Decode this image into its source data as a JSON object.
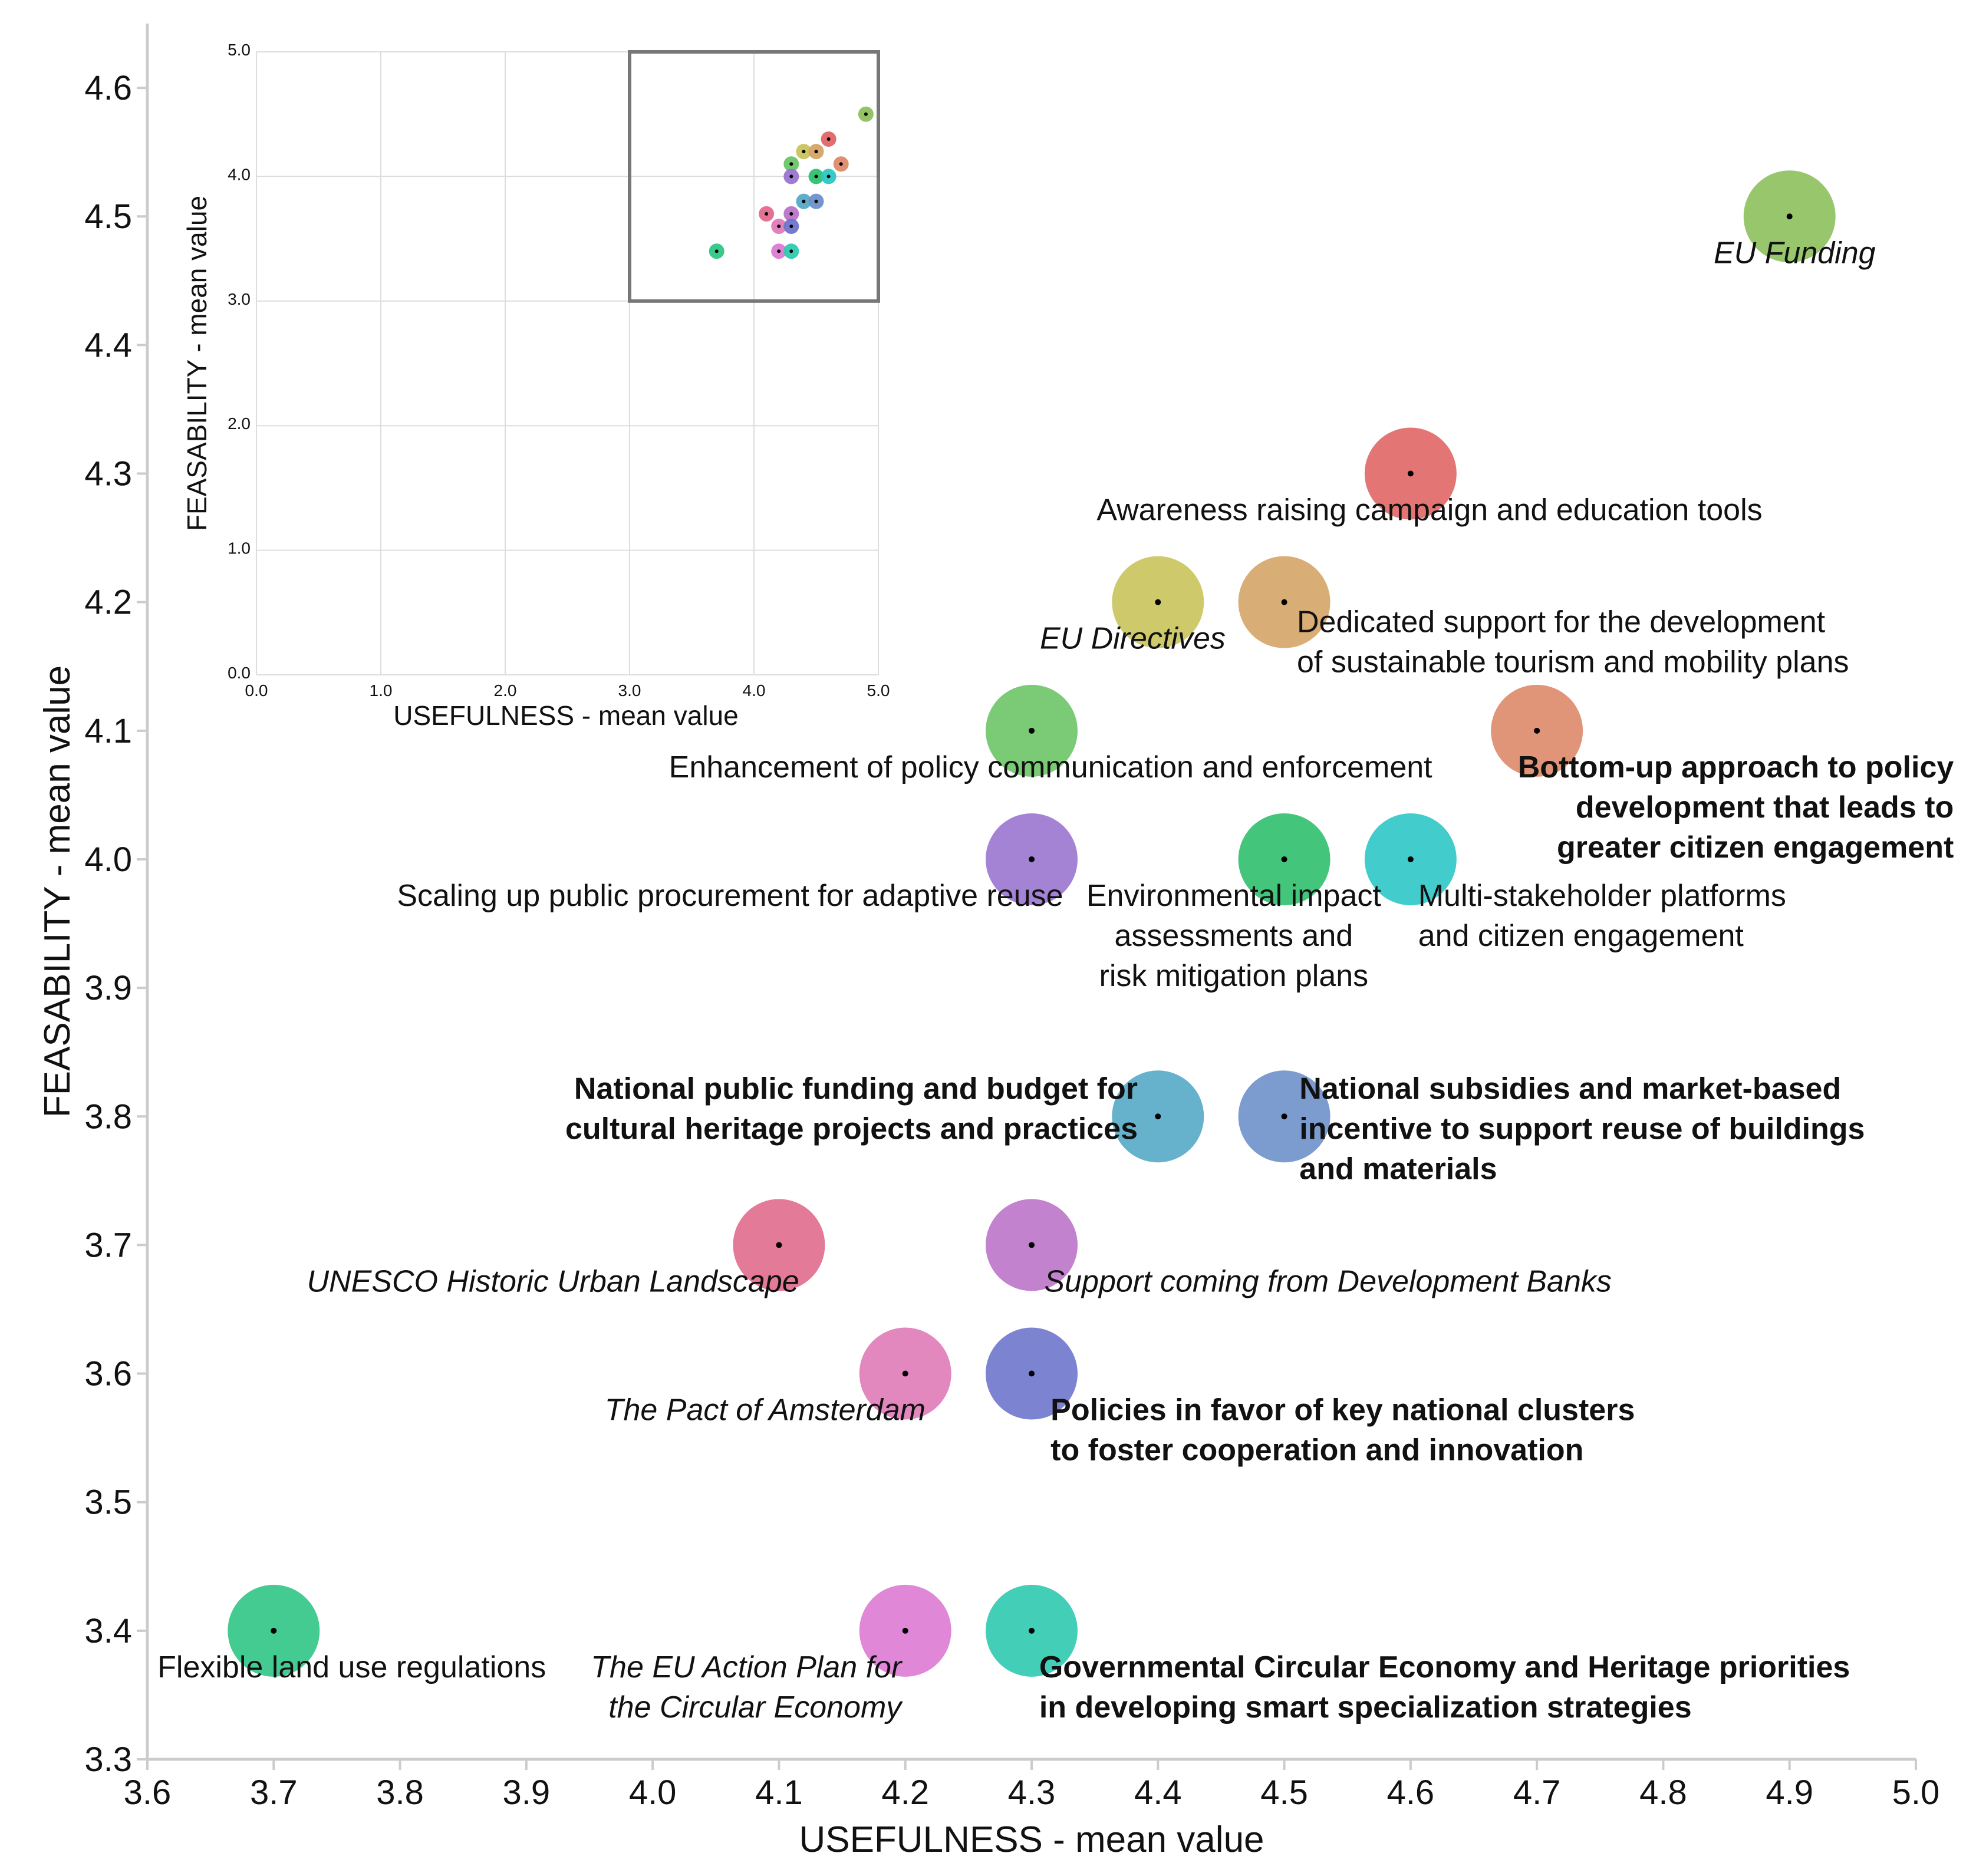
{
  "chart_data": [
    {
      "type": "scatter",
      "id": "main",
      "xlabel": "USEFULNESS - mean value",
      "ylabel": "FEASABILITY - mean value",
      "xlim": [
        3.6,
        5.0
      ],
      "ylim": [
        3.3,
        4.65
      ],
      "xticks": [
        "3.6",
        "3.7",
        "3.8",
        "3.9",
        "4.0",
        "4.1",
        "4.2",
        "4.3",
        "4.4",
        "4.5",
        "4.6",
        "4.7",
        "4.8",
        "4.9",
        "5.0"
      ],
      "yticks": [
        "3.3",
        "3.4",
        "3.5",
        "3.6",
        "3.7",
        "3.8",
        "3.9",
        "4.0",
        "4.1",
        "4.2",
        "4.3",
        "4.4",
        "4.5",
        "4.6"
      ],
      "grid": false,
      "points": [
        {
          "x": 4.9,
          "y": 4.5,
          "color": "#8dc05c",
          "lines": [
            "EU Funding"
          ],
          "style": "italic",
          "anchor": "middle",
          "dx": 0.004,
          "dy": 0.028
        },
        {
          "x": 4.6,
          "y": 4.3,
          "color": "#e06666",
          "lines": [
            "Awareness raising campaign and education tools"
          ],
          "style": "normal",
          "anchor": "middle",
          "dx": 0.015,
          "dy": 0.028
        },
        {
          "x": 4.4,
          "y": 4.2,
          "color": "#c9c45c",
          "lines": [
            "EU Directives"
          ],
          "style": "italic",
          "anchor": "middle",
          "dx": -0.02,
          "dy": 0.028
        },
        {
          "x": 4.5,
          "y": 4.2,
          "color": "#d4a467",
          "lines": [
            "Dedicated support for the development",
            "of sustainable tourism and mobility plans"
          ],
          "style": "normal",
          "anchor": "start",
          "dx": 0.01,
          "dy": 0.015
        },
        {
          "x": 4.3,
          "y": 4.1,
          "color": "#6cc467",
          "lines": [
            "Enhancement of policy communication and enforcement"
          ],
          "style": "normal",
          "anchor": "middle",
          "dx": 0.015,
          "dy": 0.028
        },
        {
          "x": 4.7,
          "y": 4.1,
          "color": "#dd8a69",
          "lines": [
            "Bottom-up approach to policy",
            "development that leads to",
            "greater citizen engagement"
          ],
          "style": "bold",
          "anchor": "end",
          "dx": 0.33,
          "dy": 0.028
        },
        {
          "x": 4.3,
          "y": 4.0,
          "color": "#9a74cf",
          "lines": [
            "Scaling up public procurement for adaptive reuse"
          ],
          "style": "normal",
          "anchor": "end",
          "dx": 0.025,
          "dy": 0.028
        },
        {
          "x": 4.5,
          "y": 4.0,
          "color": "#2fc06e",
          "lines": [
            "Environmental impact",
            "assessments and",
            "risk mitigation plans"
          ],
          "style": "normal",
          "anchor": "middle",
          "dx": -0.04,
          "dy": 0.028
        },
        {
          "x": 4.6,
          "y": 4.0,
          "color": "#2ec6c6",
          "lines": [
            "Multi-stakeholder platforms",
            "and citizen engagement"
          ],
          "style": "normal",
          "anchor": "start",
          "dx": 0.006,
          "dy": 0.028
        },
        {
          "x": 4.4,
          "y": 3.8,
          "color": "#55aac8",
          "lines": [
            "National public funding and budget for",
            "cultural heritage projects and practices"
          ],
          "style": "bold",
          "anchor": "end",
          "dx": -0.016,
          "dy": -0.022
        },
        {
          "x": 4.5,
          "y": 3.8,
          "color": "#6e90c9",
          "lines": [
            "National subsidies and market-based",
            "incentive to support reuse of buildings",
            "and materials"
          ],
          "style": "bold",
          "anchor": "start",
          "dx": 0.012,
          "dy": -0.022
        },
        {
          "x": 4.1,
          "y": 3.7,
          "color": "#e06b8c",
          "lines": [
            "UNESCO Historic Urban Landscape"
          ],
          "style": "italic",
          "anchor": "end",
          "dx": 0.016,
          "dy": 0.028
        },
        {
          "x": 4.3,
          "y": 3.7,
          "color": "#bb74c9",
          "lines": [
            "Support coming from Development Banks"
          ],
          "style": "italic",
          "anchor": "start",
          "dx": 0.01,
          "dy": 0.028
        },
        {
          "x": 4.2,
          "y": 3.6,
          "color": "#e07ab8",
          "lines": [
            "The Pact of Amsterdam"
          ],
          "style": "italic",
          "anchor": "end",
          "dx": 0.016,
          "dy": 0.028
        },
        {
          "x": 4.3,
          "y": 3.6,
          "color": "#6e75cc",
          "lines": [
            "Policies in favor of key national clusters",
            "to foster cooperation and innovation"
          ],
          "style": "bold",
          "anchor": "start",
          "dx": 0.015,
          "dy": 0.028
        },
        {
          "x": 3.7,
          "y": 3.4,
          "color": "#2fc585",
          "lines": [
            "Flexible land use regulations"
          ],
          "style": "normal",
          "anchor": "start",
          "dx": -0.092,
          "dy": 0.028
        },
        {
          "x": 4.2,
          "y": 3.4,
          "color": "#dd7ad4",
          "lines": [
            "The EU Action Plan for",
            "the Circular Economy"
          ],
          "style": "italic",
          "anchor": "end",
          "dx": -0.003,
          "dy": 0.028
        },
        {
          "x": 4.3,
          "y": 3.4,
          "color": "#2fc9b0",
          "lines": [
            "Governmental Circular Economy and Heritage priorities",
            "in developing smart specialization strategies"
          ],
          "style": "bold",
          "anchor": "start",
          "dx": 0.006,
          "dy": 0.028
        }
      ]
    },
    {
      "type": "scatter",
      "id": "inset",
      "xlabel": "USEFULNESS - mean value",
      "ylabel": "FEASABILITY - mean value",
      "xlim": [
        0.0,
        5.0
      ],
      "ylim": [
        0.0,
        5.0
      ],
      "xticks": [
        "0.0",
        "1.0",
        "2.0",
        "3.0",
        "4.0",
        "5.0"
      ],
      "yticks": [
        "0.0",
        "1.0",
        "2.0",
        "3.0",
        "4.0",
        "5.0"
      ],
      "grid": true,
      "zoom_region": {
        "x": [
          3.0,
          5.0
        ],
        "y": [
          3.0,
          5.0
        ]
      },
      "points_source": "main"
    }
  ]
}
